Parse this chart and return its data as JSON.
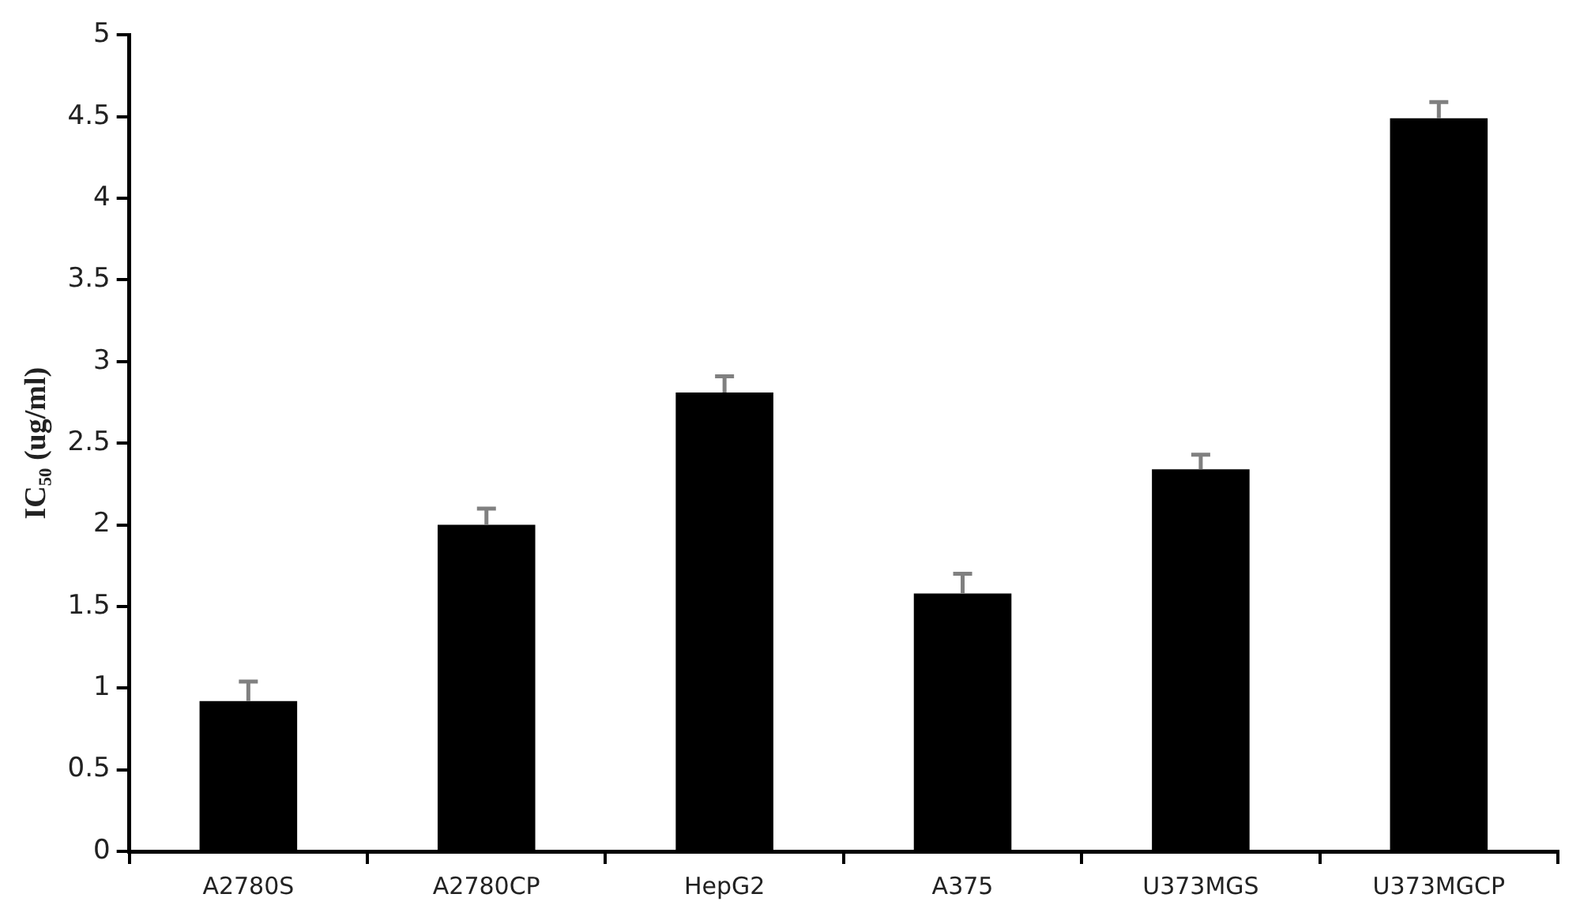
{
  "chart_data": {
    "type": "bar",
    "ylabel": "IC₅₀ (ug/ml)",
    "categories": [
      "A2780S",
      "A2780CP",
      "HepG2",
      "A375",
      "U373MGS",
      "U373MGCP"
    ],
    "values": [
      0.92,
      2.0,
      2.81,
      1.58,
      2.34,
      4.49
    ],
    "errors": [
      [
        0.92,
        1.04
      ],
      [
        2.0,
        2.1
      ],
      [
        2.81,
        2.91
      ],
      [
        1.58,
        1.7
      ],
      [
        2.34,
        2.43
      ],
      [
        4.49,
        4.59
      ]
    ],
    "color": "#000000",
    "ylim": [
      0,
      5
    ],
    "yticks": [
      0,
      0.5,
      1,
      1.5,
      2,
      2.5,
      3,
      3.5,
      4,
      4.5,
      5
    ],
    "grid": false,
    "legend": false
  }
}
